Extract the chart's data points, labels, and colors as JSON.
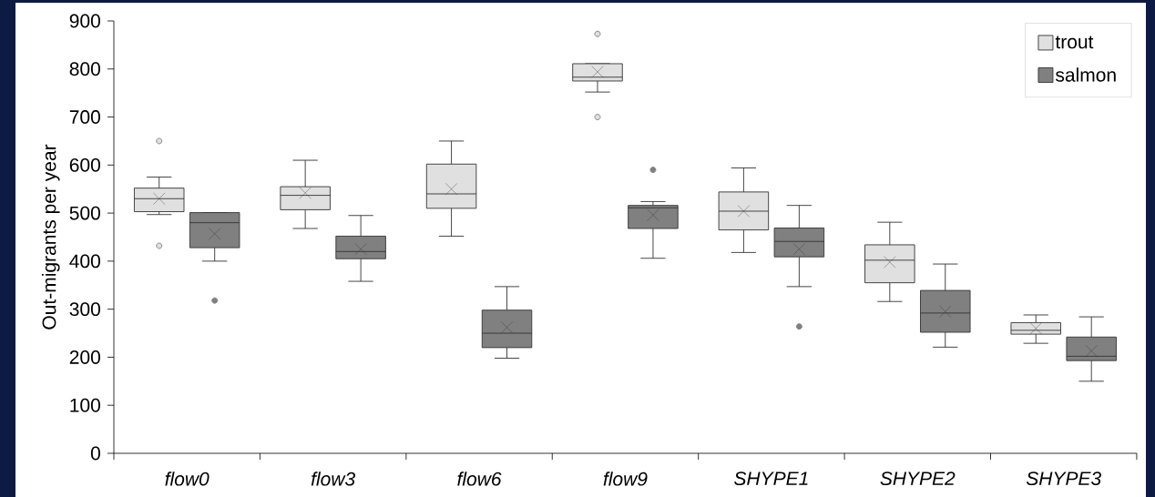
{
  "chart_data": {
    "type": "box",
    "ylabel": "Out-migrants per year",
    "categories": [
      "flow0",
      "flow3",
      "flow6",
      "flow9",
      "SHYPE1",
      "SHYPE2",
      "SHYPE3"
    ],
    "ylim": [
      0,
      900
    ],
    "yticks": [
      0,
      100,
      200,
      300,
      400,
      500,
      600,
      700,
      800,
      900
    ],
    "legend": "top right",
    "series": [
      {
        "name": "trout",
        "color": "#e0e0e0",
        "boxes": [
          {
            "low": 497,
            "q1": 503,
            "median": 530,
            "q3": 552,
            "high": 575,
            "mean": 530,
            "outliers": [
              650,
              432
            ]
          },
          {
            "low": 468,
            "q1": 507,
            "median": 537,
            "q3": 555,
            "high": 610,
            "mean": 542
          },
          {
            "low": 452,
            "q1": 510,
            "median": 540,
            "q3": 602,
            "high": 650,
            "mean": 550
          },
          {
            "low": 752,
            "q1": 775,
            "median": 783,
            "q3": 811,
            "high": 811,
            "mean": 794,
            "outliers": [
              873,
              700
            ]
          },
          {
            "low": 418,
            "q1": 465,
            "median": 504,
            "q3": 544,
            "high": 594,
            "mean": 504
          },
          {
            "low": 316,
            "q1": 355,
            "median": 402,
            "q3": 434,
            "high": 481,
            "mean": 398
          },
          {
            "low": 229,
            "q1": 248,
            "median": 256,
            "q3": 272,
            "high": 288,
            "mean": 260
          }
        ]
      },
      {
        "name": "salmon",
        "color": "#808080",
        "boxes": [
          {
            "low": 400,
            "q1": 428,
            "median": 480,
            "q3": 501,
            "high": 501,
            "mean": 457,
            "outliers": [
              318
            ]
          },
          {
            "low": 358,
            "q1": 405,
            "median": 420,
            "q3": 452,
            "high": 495,
            "mean": 425
          },
          {
            "low": 198,
            "q1": 220,
            "median": 250,
            "q3": 298,
            "high": 347,
            "mean": 262
          },
          {
            "low": 406,
            "q1": 468,
            "median": 511,
            "q3": 516,
            "high": 524,
            "mean": 496,
            "outliers": [
              590
            ]
          },
          {
            "low": 347,
            "q1": 409,
            "median": 441,
            "q3": 469,
            "high": 516,
            "mean": 425,
            "outliers": [
              264
            ]
          },
          {
            "low": 221,
            "q1": 252,
            "median": 292,
            "q3": 339,
            "high": 394,
            "mean": 295
          },
          {
            "low": 150,
            "q1": 193,
            "median": 202,
            "q3": 242,
            "high": 284,
            "mean": 213
          }
        ]
      }
    ]
  }
}
